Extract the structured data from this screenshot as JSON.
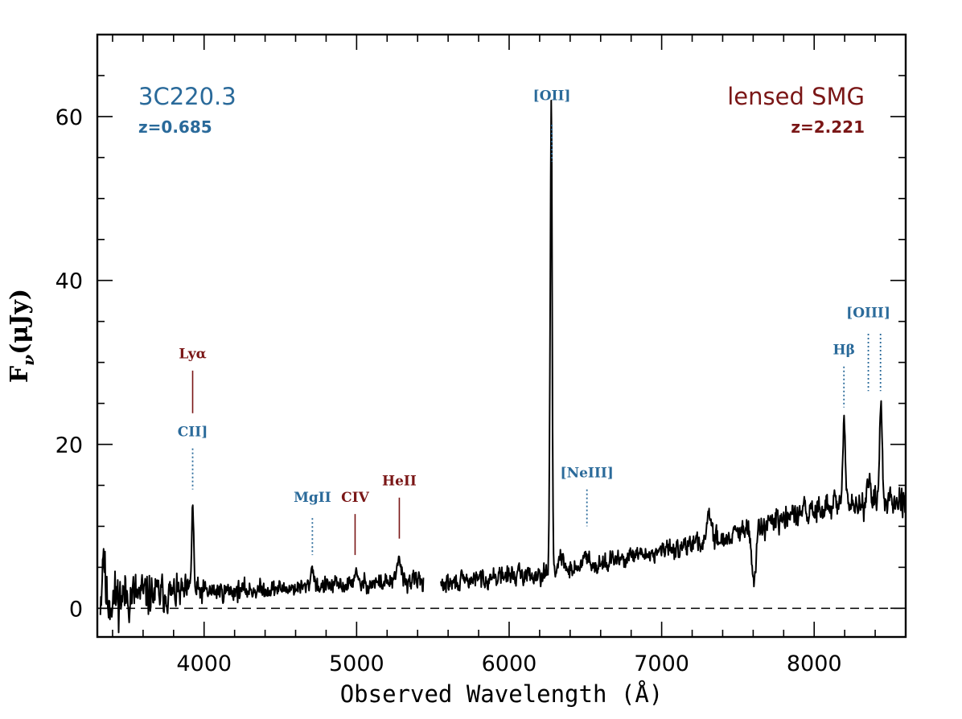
{
  "chart_data": {
    "type": "line",
    "xlabel": "Observed Wavelength (Å)",
    "ylabel_main": "F",
    "ylabel_sub": "ν",
    "ylabel_units": "(μJy)",
    "xlim": [
      3300,
      8600
    ],
    "ylim": [
      -3.5,
      70
    ],
    "xticks_major": [
      4000,
      5000,
      6000,
      7000,
      8000
    ],
    "xticks_minor_step": 200,
    "yticks_major": [
      0,
      20,
      40,
      60
    ],
    "yticks_minor_step": 5,
    "baseline": 0,
    "colors": {
      "foreground": "#2a6a9a",
      "background": "#7a1616",
      "spectrum": "#000000"
    },
    "objects": [
      {
        "name": "3C220.3",
        "redshift": "z=0.685",
        "role": "foreground"
      },
      {
        "name": "lensed SMG",
        "redshift": "z=2.221",
        "role": "background"
      }
    ],
    "emission_lines": [
      {
        "label": "[OII]",
        "wavelength": 6280,
        "object": "foreground",
        "style": "dotted",
        "line_top": 59,
        "line_bottom": 54.5,
        "label_y": 62
      },
      {
        "label": "Lyα",
        "wavelength": 3925,
        "object": "background",
        "style": "solid",
        "line_top": 29,
        "line_bottom": 23.8,
        "label_y": 30.5
      },
      {
        "label": "CII]",
        "wavelength": 3925,
        "object": "foreground",
        "style": "dotted",
        "line_top": 19.5,
        "line_bottom": 14.5,
        "label_y": 21
      },
      {
        "label": "MgII",
        "wavelength": 4710,
        "object": "foreground",
        "style": "dotted",
        "line_top": 11,
        "line_bottom": 6.5,
        "label_y": 13
      },
      {
        "label": "CIV",
        "wavelength": 4990,
        "object": "background",
        "style": "solid",
        "line_top": 11.5,
        "line_bottom": 6.5,
        "label_y": 13
      },
      {
        "label": "HeII",
        "wavelength": 5280,
        "object": "background",
        "style": "solid",
        "line_top": 13.5,
        "line_bottom": 8.5,
        "label_y": 15
      },
      {
        "label": "[NeIII]",
        "wavelength": 6510,
        "object": "foreground",
        "style": "dotted",
        "line_top": 14.5,
        "line_bottom": 10,
        "label_y": 16
      },
      {
        "label": "Hβ",
        "wavelength": 8195,
        "object": "foreground",
        "style": "dotted",
        "line_top": 29.5,
        "line_bottom": 24.5,
        "label_y": 31
      },
      {
        "label": "[OIII]",
        "wavelength": 8355,
        "object": "foreground",
        "style": "dotted",
        "line_top": 33.5,
        "line_bottom": 26.5,
        "label_y": 35.5
      },
      {
        "label": "",
        "wavelength": 8435,
        "object": "foreground",
        "style": "dotted",
        "line_top": 33.5,
        "line_bottom": 26.5
      }
    ],
    "spectrum_segments": [
      {
        "name": "blue-arm",
        "continuum": [
          [
            3320,
            1.0
          ],
          [
            3500,
            1.6
          ],
          [
            3800,
            1.8
          ],
          [
            4000,
            2.0
          ],
          [
            4400,
            2.3
          ],
          [
            4700,
            2.6
          ],
          [
            5000,
            2.9
          ],
          [
            5200,
            3.2
          ],
          [
            5440,
            3.4
          ]
        ],
        "noise": [
          [
            3320,
            3.2
          ],
          [
            3800,
            1.8
          ],
          [
            4100,
            1.1
          ],
          [
            4600,
            0.9
          ],
          [
            5440,
            1.1
          ]
        ],
        "features": [
          {
            "center": 3340,
            "amp": 6.5,
            "width": 8
          },
          {
            "center": 3925,
            "amp": 10.5,
            "width": 7
          },
          {
            "center": 4710,
            "amp": 2.3,
            "width": 12
          },
          {
            "center": 4990,
            "amp": 1.6,
            "width": 10
          },
          {
            "center": 5280,
            "amp": 3.0,
            "width": 11
          }
        ],
        "seed": 11
      },
      {
        "name": "red-arm",
        "continuum": [
          [
            5550,
            2.8
          ],
          [
            5800,
            3.6
          ],
          [
            6000,
            4.0
          ],
          [
            6250,
            4.3
          ],
          [
            6500,
            5.2
          ],
          [
            6800,
            6.2
          ],
          [
            7000,
            7.0
          ],
          [
            7200,
            7.8
          ],
          [
            7500,
            9.0
          ],
          [
            7700,
            10.3
          ],
          [
            8000,
            12.0
          ],
          [
            8200,
            12.6
          ],
          [
            8400,
            13.0
          ],
          [
            8600,
            13.5
          ]
        ],
        "noise": [
          [
            5550,
            1.0
          ],
          [
            7000,
            1.0
          ],
          [
            8000,
            1.5
          ],
          [
            8600,
            1.6
          ]
        ],
        "features": [
          {
            "center": 6275,
            "amp": 47.0,
            "width": 7
          },
          {
            "center": 6278,
            "amp": 13.0,
            "width": 3
          },
          {
            "center": 6340,
            "amp": 1.5,
            "width": 14
          },
          {
            "center": 6510,
            "amp": 1.6,
            "width": 14
          },
          {
            "center": 7310,
            "amp": 3.5,
            "width": 14
          },
          {
            "center": 7605,
            "amp": -6.8,
            "width": 13
          },
          {
            "center": 8195,
            "amp": 9.0,
            "width": 9
          },
          {
            "center": 8355,
            "amp": 2.4,
            "width": 12
          },
          {
            "center": 8438,
            "amp": 11.0,
            "width": 9
          }
        ],
        "seed": 29
      }
    ]
  }
}
